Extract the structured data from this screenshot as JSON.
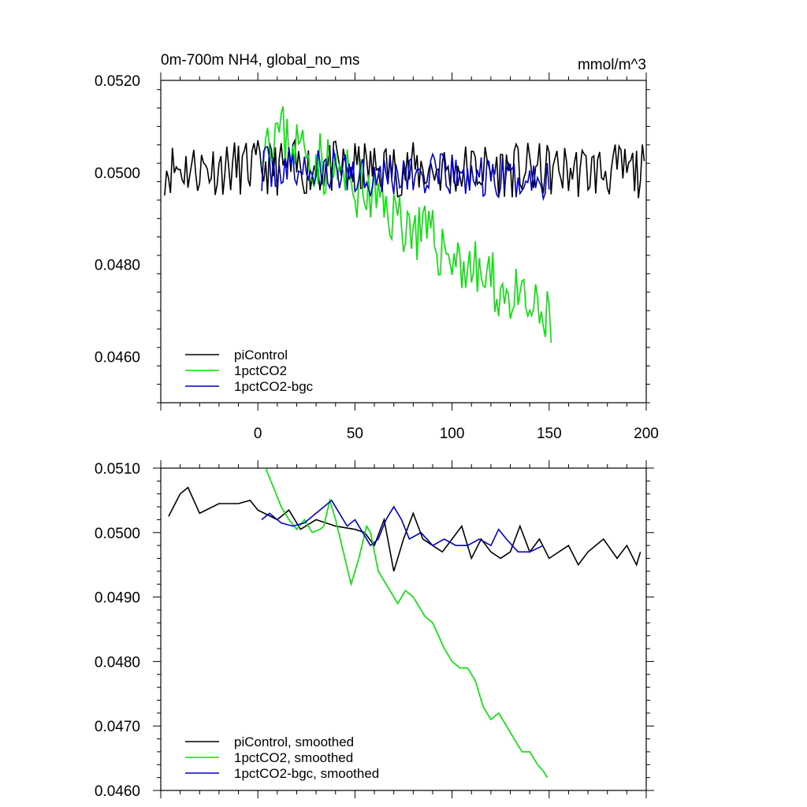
{
  "chart_data": [
    {
      "type": "line",
      "title": "0m-700m NH4, global_no_ms",
      "units": "mmol/m^3",
      "xlabel": "",
      "ylabel": "",
      "xlim": [
        -50,
        200
      ],
      "ylim": [
        0.045,
        0.052
      ],
      "x_ticks": [
        0,
        50,
        100,
        150,
        200
      ],
      "y_ticks": [
        0.046,
        0.048,
        0.05,
        0.052
      ],
      "x_tick_labels": [
        "0",
        "50",
        "100",
        "150",
        "200"
      ],
      "y_tick_labels": [
        "0.0460",
        "0.0480",
        "0.0500",
        "0.0520"
      ],
      "legend": [
        "piControl",
        "1pctCO2",
        "1pctCO2-bgc"
      ],
      "legend_position": "bottom-left",
      "series": [
        {
          "name": "piControl",
          "color": "#000000",
          "x_start": -48,
          "x_end": 199,
          "baseline": 0.0501,
          "trend_per_year": -4e-07,
          "noise": 0.0006,
          "seed": 11
        },
        {
          "name": "1pctCO2",
          "color": "#00e600",
          "x_start": 2,
          "x_end": 151,
          "baseline": 0.0509,
          "trend_per_year": -3e-05,
          "trend_start": 10,
          "noise": 0.0007,
          "seed": 23
        },
        {
          "name": "1pctCO2-bgc",
          "color": "#0000cc",
          "x_start": 2,
          "x_end": 150,
          "baseline": 0.0501,
          "trend_per_year": -2e-06,
          "noise": 0.0005,
          "seed": 37
        }
      ]
    },
    {
      "type": "line",
      "title": "",
      "xlabel": "",
      "ylabel": "",
      "xlim": [
        -50,
        200
      ],
      "ylim": [
        0.046,
        0.051
      ],
      "x_ticks": [
        0,
        50,
        100,
        150,
        200
      ],
      "y_ticks": [
        0.046,
        0.047,
        0.048,
        0.049,
        0.05,
        0.051
      ],
      "y_tick_labels": [
        "0.0460",
        "0.0470",
        "0.0480",
        "0.0490",
        "0.0500",
        "0.0510"
      ],
      "legend": [
        "piControl, smoothed",
        "1pctCO2, smoothed",
        "1pctCO2-bgc, smoothed"
      ],
      "legend_position": "bottom-left",
      "series": [
        {
          "name": "piControl, smoothed",
          "color": "#000000",
          "x_start": -46,
          "x_end": 197,
          "points": [
            [
              -46,
              0.05025
            ],
            [
              -40,
              0.0506
            ],
            [
              -36,
              0.0507
            ],
            [
              -30,
              0.0503
            ],
            [
              -20,
              0.05045
            ],
            [
              -10,
              0.05045
            ],
            [
              -4,
              0.0505
            ],
            [
              0,
              0.05035
            ],
            [
              10,
              0.0502
            ],
            [
              16,
              0.05035
            ],
            [
              22,
              0.05005
            ],
            [
              30,
              0.0502
            ],
            [
              40,
              0.0501
            ],
            [
              50,
              0.05005
            ],
            [
              55,
              0.05
            ],
            [
              60,
              0.0498
            ],
            [
              65,
              0.0502
            ],
            [
              70,
              0.0494
            ],
            [
              75,
              0.0499
            ],
            [
              80,
              0.0503
            ],
            [
              85,
              0.0499
            ],
            [
              90,
              0.0498
            ],
            [
              95,
              0.0497
            ],
            [
              100,
              0.0499
            ],
            [
              105,
              0.0501
            ],
            [
              110,
              0.0496
            ],
            [
              115,
              0.0499
            ],
            [
              120,
              0.0497
            ],
            [
              125,
              0.0496
            ],
            [
              130,
              0.0497
            ],
            [
              135,
              0.0501
            ],
            [
              140,
              0.0497
            ],
            [
              145,
              0.0499
            ],
            [
              150,
              0.0496
            ],
            [
              160,
              0.0498
            ],
            [
              165,
              0.0495
            ],
            [
              170,
              0.0497
            ],
            [
              178,
              0.0499
            ],
            [
              185,
              0.0496
            ],
            [
              190,
              0.0498
            ],
            [
              195,
              0.0495
            ],
            [
              197,
              0.0497
            ]
          ]
        },
        {
          "name": "1pctCO2, smoothed",
          "color": "#00e600",
          "x_start": 4,
          "x_end": 149,
          "points": [
            [
              4,
              0.051
            ],
            [
              8,
              0.0507
            ],
            [
              12,
              0.0504
            ],
            [
              16,
              0.0502
            ],
            [
              20,
              0.05005
            ],
            [
              24,
              0.0502
            ],
            [
              28,
              0.05
            ],
            [
              32,
              0.05005
            ],
            [
              34,
              0.0501
            ],
            [
              37,
              0.0505
            ],
            [
              40,
              0.0502
            ],
            [
              44,
              0.0497
            ],
            [
              48,
              0.0492
            ],
            [
              52,
              0.0496
            ],
            [
              56,
              0.0501
            ],
            [
              58,
              0.05
            ],
            [
              62,
              0.0494
            ],
            [
              68,
              0.0491
            ],
            [
              72,
              0.0489
            ],
            [
              76,
              0.0491
            ],
            [
              80,
              0.049
            ],
            [
              86,
              0.0487
            ],
            [
              90,
              0.0486
            ],
            [
              96,
              0.0482
            ],
            [
              100,
              0.048
            ],
            [
              104,
              0.0479
            ],
            [
              108,
              0.0479
            ],
            [
              112,
              0.0477
            ],
            [
              116,
              0.0473
            ],
            [
              120,
              0.0471
            ],
            [
              124,
              0.0472
            ],
            [
              128,
              0.047
            ],
            [
              132,
              0.0468
            ],
            [
              136,
              0.0466
            ],
            [
              140,
              0.0466
            ],
            [
              144,
              0.0464
            ],
            [
              147,
              0.0463
            ],
            [
              149,
              0.0462
            ]
          ]
        },
        {
          "name": "1pctCO2-bgc, smoothed",
          "color": "#0000cc",
          "x_start": 2,
          "x_end": 147,
          "points": [
            [
              2,
              0.0502
            ],
            [
              6,
              0.0503
            ],
            [
              12,
              0.05015
            ],
            [
              18,
              0.0501
            ],
            [
              24,
              0.05015
            ],
            [
              30,
              0.0503
            ],
            [
              34,
              0.0504
            ],
            [
              38,
              0.0505
            ],
            [
              42,
              0.0503
            ],
            [
              46,
              0.0501
            ],
            [
              50,
              0.0502
            ],
            [
              54,
              0.05
            ],
            [
              58,
              0.0498
            ],
            [
              62,
              0.0499
            ],
            [
              66,
              0.0502
            ],
            [
              70,
              0.0504
            ],
            [
              74,
              0.0502
            ],
            [
              78,
              0.0499
            ],
            [
              84,
              0.05
            ],
            [
              90,
              0.0498
            ],
            [
              96,
              0.0499
            ],
            [
              102,
              0.0498
            ],
            [
              108,
              0.0498
            ],
            [
              114,
              0.0499
            ],
            [
              120,
              0.0498
            ],
            [
              124,
              0.05005
            ],
            [
              128,
              0.0499
            ],
            [
              134,
              0.0497
            ],
            [
              140,
              0.0497
            ],
            [
              147,
              0.0498
            ]
          ]
        }
      ]
    }
  ]
}
